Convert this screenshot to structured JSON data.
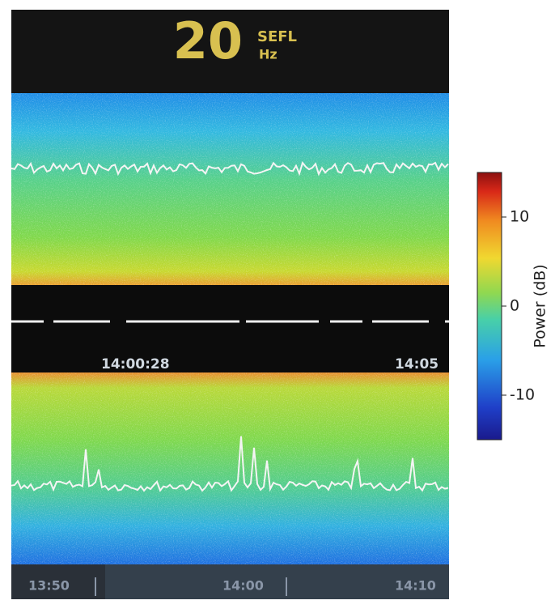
{
  "header": {
    "value": "20",
    "label": "SEFL",
    "unit": "Hz"
  },
  "timestamps": [
    "14:00:28",
    "14:05"
  ],
  "time_axis": [
    "13:50",
    "14:00",
    "14:10"
  ],
  "colorbar": {
    "label": "Power (dB)",
    "lim": [
      -15,
      15
    ],
    "ticks": [
      10,
      0,
      -10
    ]
  }
}
